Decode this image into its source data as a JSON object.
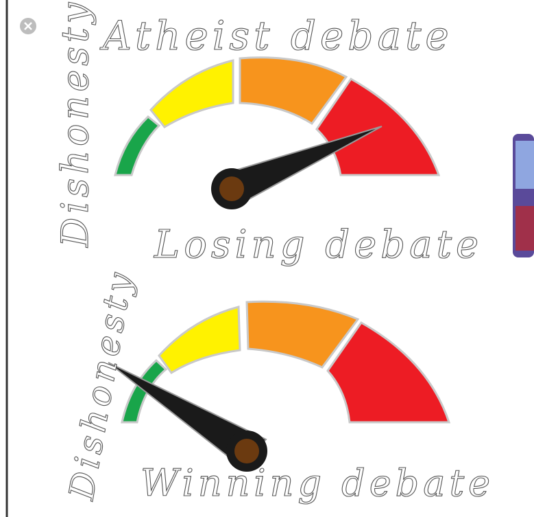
{
  "meme": {
    "top": {
      "title": "Atheist debate",
      "axis_label": "Dishonesty",
      "caption": "Losing debate"
    },
    "bottom": {
      "axis_label": "Dishonesty",
      "caption": "Winning debate"
    }
  }
}
